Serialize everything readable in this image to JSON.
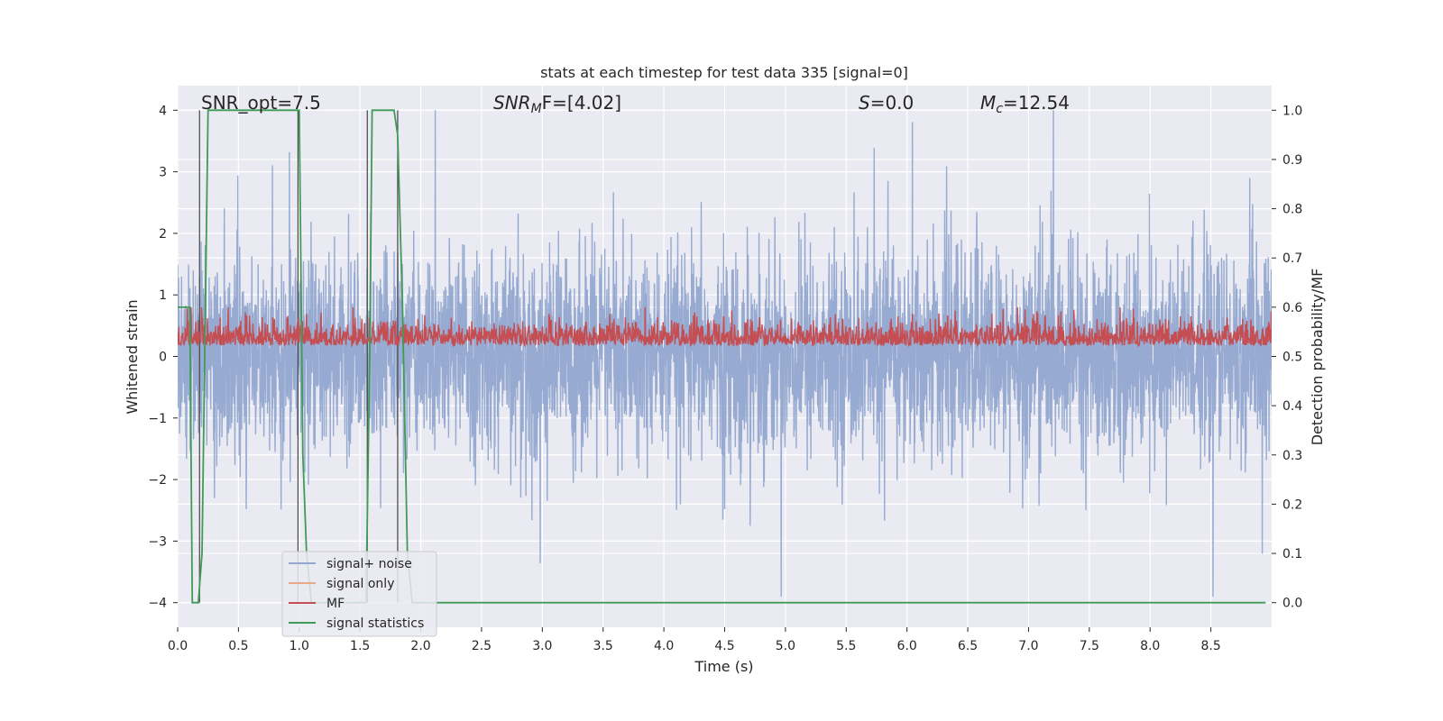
{
  "chart_data": {
    "type": "line",
    "title": "stats at each timestep for test data 335 [signal=0]",
    "xlabel": "Time (s)",
    "ylabel": "Whitened strain",
    "y2label": "Detection probability/MF",
    "xlim": [
      0,
      9.0
    ],
    "ylim": [
      -4.4,
      4.4
    ],
    "y2lim": [
      -0.05,
      1.05
    ],
    "xticks": [
      "0.0",
      "0.5",
      "1.0",
      "1.5",
      "2.0",
      "2.5",
      "3.0",
      "3.5",
      "4.0",
      "4.5",
      "5.0",
      "5.5",
      "6.0",
      "6.5",
      "7.0",
      "7.5",
      "8.0",
      "8.5"
    ],
    "yticks": [
      "−4",
      "−3",
      "−2",
      "−1",
      "0",
      "1",
      "2",
      "3",
      "4"
    ],
    "y2ticks": [
      "0.0",
      "0.1",
      "0.2",
      "0.3",
      "0.4",
      "0.5",
      "0.6",
      "0.7",
      "0.8",
      "0.9",
      "1.0"
    ],
    "grid": true,
    "legend_position": "lower-left",
    "annotations": {
      "snr_opt": "SNR_opt=7.5",
      "snr_mf_pre": "SNR",
      "snr_mf_sub": "M",
      "snr_mf_post": "F=[4.02]",
      "s_pre": "S",
      "s_post": "=0.0",
      "mc_pre": "M",
      "mc_sub": "c",
      "mc_post": "=12.54"
    },
    "vertical_lines_x": [
      0.18,
      0.99,
      1.56,
      1.81
    ],
    "series": [
      {
        "name": "signal+ noise",
        "color": "#92a6cf",
        "axis": "left",
        "description_values": {
          "sample_rate": 2048,
          "noise_std": 0.7
        }
      },
      {
        "name": "signal only",
        "color": "#e8a98a",
        "axis": "left",
        "values": []
      },
      {
        "name": "MF",
        "color": "#c44e52",
        "axis": "right",
        "range_y2": [
          0.5,
          0.6
        ]
      },
      {
        "name": "signal statistics",
        "color": "#3f9b55",
        "axis": "right",
        "x": [
          0.0,
          0.05,
          0.1,
          0.12,
          0.17,
          0.2,
          0.25,
          0.7,
          0.97,
          1.0,
          1.03,
          1.06,
          1.1,
          1.55,
          1.58,
          1.6,
          1.78,
          1.81,
          1.85,
          1.89,
          1.93,
          8.95
        ],
        "y": [
          0.6,
          0.6,
          0.6,
          0.0,
          0.0,
          0.1,
          1.0,
          1.0,
          1.0,
          1.0,
          0.3,
          0.1,
          0.0,
          0.0,
          0.5,
          1.0,
          1.0,
          0.95,
          0.6,
          0.1,
          0.0,
          0.0
        ]
      }
    ]
  }
}
